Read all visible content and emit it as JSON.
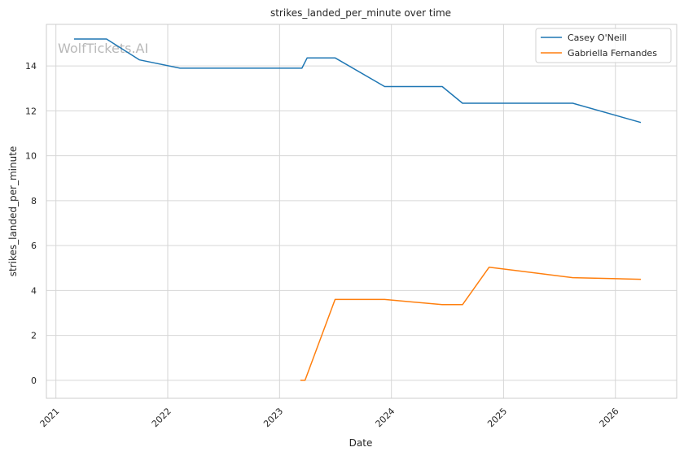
{
  "chart_data": {
    "type": "line",
    "title": "strikes_landed_per_minute over time",
    "xlabel": "Date",
    "ylabel": "strikes_landed_per_minute",
    "watermark": "WolfTickets.AI",
    "x_ticks": [
      "2021",
      "2022",
      "2023",
      "2024",
      "2025",
      "2026"
    ],
    "y_ticks": [
      0,
      2,
      4,
      6,
      8,
      10,
      12,
      14
    ],
    "xlim": [
      "2020-12-01",
      "2026-07-20"
    ],
    "ylim": [
      -0.8,
      15.85
    ],
    "grid": true,
    "legend_position": "top-right",
    "series": [
      {
        "name": "Casey O'Neill",
        "color": "#1f77b4",
        "points": [
          [
            "2021-03-01",
            15.2
          ],
          [
            "2021-06-15",
            15.2
          ],
          [
            "2021-10-01",
            14.27
          ],
          [
            "2022-02-10",
            13.9
          ],
          [
            "2023-03-15",
            13.9
          ],
          [
            "2023-04-01",
            14.36
          ],
          [
            "2023-07-01",
            14.36
          ],
          [
            "2023-12-10",
            13.08
          ],
          [
            "2024-06-15",
            13.08
          ],
          [
            "2024-08-20",
            12.34
          ],
          [
            "2025-08-15",
            12.34
          ],
          [
            "2026-03-25",
            11.48
          ]
        ]
      },
      {
        "name": "Gabriella Fernandes",
        "color": "#ff7f0e",
        "points": [
          [
            "2023-03-10",
            0.0
          ],
          [
            "2023-03-25",
            0.0
          ],
          [
            "2023-07-01",
            3.6
          ],
          [
            "2023-12-10",
            3.6
          ],
          [
            "2024-06-15",
            3.37
          ],
          [
            "2024-08-20",
            3.37
          ],
          [
            "2024-11-15",
            5.04
          ],
          [
            "2025-08-15",
            4.57
          ],
          [
            "2026-03-25",
            4.5
          ]
        ]
      }
    ]
  }
}
